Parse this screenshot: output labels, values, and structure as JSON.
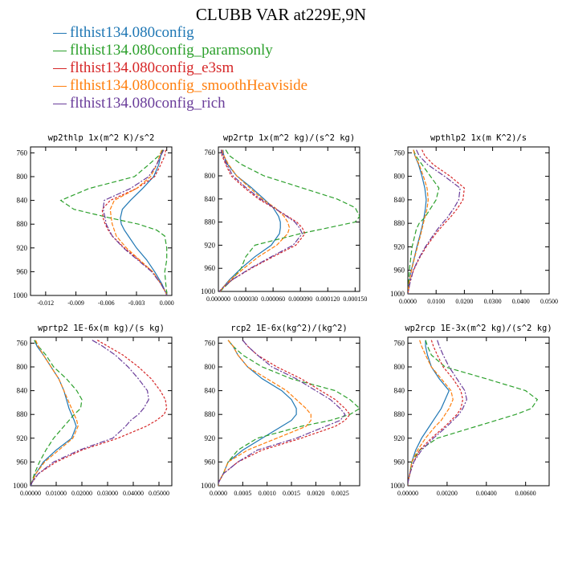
{
  "title": "CLUBB VAR at229E,9N",
  "legend": [
    {
      "label": "flthist134.080config",
      "color": "#1f77b4"
    },
    {
      "label": "flthist134.080config_paramsonly",
      "color": "#2ca02c"
    },
    {
      "label": "flthist134.080config_e3sm",
      "color": "#d62728"
    },
    {
      "label": "flthist134.080config_smoothHeaviside",
      "color": "#ff7f0e"
    },
    {
      "label": "flthist134.080config_rich",
      "color": "#6a3d9a"
    }
  ],
  "chart_data": [
    {
      "type": "line",
      "title": "wp2thlp  1x(m^2 K)/s^2",
      "xlim": [
        -0.0135,
        0.0005
      ],
      "xticks": [
        -0.012,
        -0.009,
        -0.006,
        -0.003,
        0.0
      ],
      "xticklabels": [
        "-0.012",
        "-0.009",
        "-0.006",
        "-0.003",
        "0.000"
      ],
      "ylim": [
        1000,
        750
      ],
      "yticks": [
        760,
        800,
        840,
        880,
        920,
        960,
        1000
      ],
      "yticklabels": [
        "760",
        "800",
        "840",
        "880",
        "920",
        "960",
        "1000"
      ],
      "y": [
        755,
        765,
        780,
        800,
        820,
        840,
        855,
        870,
        880,
        890,
        900,
        920,
        940,
        960,
        980,
        995,
        1000
      ],
      "series": [
        {
          "name": "flthist134.080config",
          "values": [
            -0.0004,
            -0.0006,
            -0.0008,
            -0.0013,
            -0.0024,
            -0.0036,
            -0.0044,
            -0.0046,
            -0.0045,
            -0.0042,
            -0.0038,
            -0.003,
            -0.002,
            -0.0012,
            -0.0005,
            -0.0001,
            0.0
          ]
        },
        {
          "name": "flthist134.080config_paramsonly",
          "values": [
            -0.0004,
            -0.0008,
            -0.0018,
            -0.0032,
            -0.0077,
            -0.0105,
            -0.0092,
            -0.0055,
            -0.0028,
            -0.001,
            -0.0002,
            0.0,
            0.0,
            -0.0002,
            -0.0001,
            0.0,
            0.0
          ]
        },
        {
          "name": "flthist134.080config_e3sm",
          "values": [
            -0.0001,
            -0.0002,
            -0.0006,
            -0.0012,
            -0.003,
            -0.0056,
            -0.0064,
            -0.0063,
            -0.0061,
            -0.0058,
            -0.0054,
            -0.0042,
            -0.0028,
            -0.0014,
            -0.0006,
            -0.0001,
            0.0
          ]
        },
        {
          "name": "flthist134.080config_smoothHeaviside",
          "values": [
            -0.0005,
            -0.0007,
            -0.001,
            -0.0016,
            -0.003,
            -0.0052,
            -0.0056,
            -0.0055,
            -0.0054,
            -0.0052,
            -0.005,
            -0.004,
            -0.0027,
            -0.0014,
            -0.0006,
            -0.0001,
            0.0
          ]
        },
        {
          "name": "flthist134.080config_rich",
          "values": [
            -0.0003,
            -0.0006,
            -0.001,
            -0.0018,
            -0.0036,
            -0.0062,
            -0.0063,
            -0.0061,
            -0.006,
            -0.0057,
            -0.0054,
            -0.0043,
            -0.0029,
            -0.0015,
            -0.0006,
            -0.0001,
            0.0
          ]
        }
      ]
    },
    {
      "type": "line",
      "title": "wp2rtp  1x(m^2 kg)/(s^2 kg)",
      "xlim": [
        0.0,
        0.000155
      ],
      "xticks": [
        0.0,
        3e-05,
        6e-05,
        9e-05,
        0.00012,
        0.00015
      ],
      "xticklabels": [
        "0.000000",
        "0.000030",
        "0.000060",
        "0.000090",
        "0.000120",
        "0.000150"
      ],
      "ylim": [
        1000,
        750
      ],
      "yticks": [
        760,
        800,
        840,
        880,
        920,
        960,
        1000
      ],
      "yticklabels": [
        "760",
        "800",
        "840",
        "880",
        "920",
        "960",
        "1000"
      ],
      "y": [
        755,
        765,
        780,
        800,
        820,
        840,
        855,
        870,
        880,
        890,
        900,
        920,
        940,
        960,
        980,
        995,
        1000
      ],
      "series": [
        {
          "name": "flthist134.080config",
          "values": [
            5e-06,
            6e-06,
            1e-05,
            2e-05,
            3.6e-05,
            5e-05,
            6e-05,
            6.6e-05,
            6.8e-05,
            6.8e-05,
            6.7e-05,
            5.8e-05,
            4e-05,
            2.5e-05,
            1.2e-05,
            4e-06,
            2e-06
          ]
        },
        {
          "name": "flthist134.080config_paramsonly",
          "values": [
            8e-06,
            1.2e-05,
            2.5e-05,
            5e-05,
            9e-05,
            0.00013,
            0.00015,
            0.000155,
            0.00015,
            0.00012,
            9e-05,
            4e-05,
            3e-05,
            2.5e-05,
            1.5e-05,
            5e-06,
            2e-06
          ]
        },
        {
          "name": "flthist134.080config_e3sm",
          "values": [
            3e-06,
            4e-06,
            8e-06,
            1.4e-05,
            2.8e-05,
            4.4e-05,
            6e-05,
            7.6e-05,
            8.6e-05,
            9.2e-05,
            9.5e-05,
            8.5e-05,
            6e-05,
            3.6e-05,
            1.5e-05,
            4e-06,
            1e-06
          ]
        },
        {
          "name": "flthist134.080config_smoothHeaviside",
          "values": [
            4e-06,
            6e-06,
            1.1e-05,
            2e-05,
            3.4e-05,
            4.8e-05,
            6.2e-05,
            7.2e-05,
            7.6e-05,
            7.8e-05,
            7.6e-05,
            6.4e-05,
            4.4e-05,
            2.8e-05,
            1.3e-05,
            4e-06,
            2e-06
          ]
        },
        {
          "name": "flthist134.080config_rich",
          "values": [
            3e-06,
            5e-06,
            9e-06,
            1.6e-05,
            3e-05,
            4.6e-05,
            6.1e-05,
            7.5e-05,
            8.4e-05,
            8.9e-05,
            9.2e-05,
            8.2e-05,
            5.8e-05,
            3.5e-05,
            1.5e-05,
            4e-06,
            1e-06
          ]
        }
      ]
    },
    {
      "type": "line",
      "title": "wpthlp2  1x(m K^2)/s",
      "xlim": [
        0.0,
        0.05
      ],
      "xticks": [
        0.0,
        0.01,
        0.02,
        0.03,
        0.04,
        0.05
      ],
      "xticklabels": [
        "0.0000",
        "0.0100",
        "0.0200",
        "0.0300",
        "0.0400",
        "0.0500"
      ],
      "ylim": [
        1000,
        750
      ],
      "yticks": [
        760,
        800,
        840,
        880,
        920,
        960,
        1000
      ],
      "yticklabels": [
        "760",
        "800",
        "840",
        "880",
        "920",
        "960",
        "1000"
      ],
      "y": [
        755,
        765,
        780,
        800,
        820,
        840,
        855,
        870,
        880,
        890,
        900,
        920,
        940,
        960,
        980,
        995,
        1000
      ],
      "series": [
        {
          "name": "flthist134.080config",
          "values": [
            0.002,
            0.0025,
            0.0038,
            0.005,
            0.006,
            0.0065,
            0.0062,
            0.0057,
            0.0053,
            0.0048,
            0.0043,
            0.0032,
            0.0022,
            0.0012,
            0.0005,
            0.0001,
            0.0
          ]
        },
        {
          "name": "flthist134.080config_paramsonly",
          "values": [
            0.002,
            0.0028,
            0.005,
            0.008,
            0.011,
            0.01,
            0.008,
            0.006,
            0.004,
            0.003,
            0.0025,
            0.0015,
            0.001,
            0.0005,
            0.0003,
            0.0001,
            0.0
          ]
        },
        {
          "name": "flthist134.080config_e3sm",
          "values": [
            0.005,
            0.006,
            0.009,
            0.015,
            0.02,
            0.0195,
            0.0175,
            0.015,
            0.013,
            0.0112,
            0.0095,
            0.0065,
            0.004,
            0.002,
            0.0008,
            0.0002,
            0.0
          ]
        },
        {
          "name": "flthist134.080config_smoothHeaviside",
          "values": [
            0.002,
            0.0025,
            0.004,
            0.0055,
            0.0068,
            0.0072,
            0.0068,
            0.006,
            0.0055,
            0.005,
            0.0045,
            0.0034,
            0.0023,
            0.0013,
            0.0005,
            0.0001,
            0.0
          ]
        },
        {
          "name": "flthist134.080config_rich",
          "values": [
            0.003,
            0.004,
            0.007,
            0.013,
            0.0185,
            0.018,
            0.0162,
            0.014,
            0.0122,
            0.0105,
            0.009,
            0.0062,
            0.0038,
            0.0019,
            0.0008,
            0.0002,
            0.0
          ]
        }
      ]
    },
    {
      "type": "line",
      "title": "wprtp2  1E-6x(m kg)/(s kg)",
      "xlim": [
        0.0,
        0.055
      ],
      "xticks": [
        0.0,
        0.01,
        0.02,
        0.03,
        0.04,
        0.05
      ],
      "xticklabels": [
        "0.00000",
        "0.01000",
        "0.02000",
        "0.03000",
        "0.04000",
        "0.05000"
      ],
      "ylim": [
        1000,
        750
      ],
      "yticks": [
        760,
        800,
        840,
        880,
        920,
        960,
        1000
      ],
      "yticklabels": [
        "760",
        "800",
        "840",
        "880",
        "920",
        "960",
        "1000"
      ],
      "y": [
        755,
        765,
        780,
        800,
        820,
        840,
        855,
        870,
        880,
        890,
        900,
        920,
        940,
        960,
        980,
        995,
        1000
      ],
      "series": [
        {
          "name": "flthist134.080config",
          "values": [
            0.0015,
            0.0025,
            0.005,
            0.008,
            0.011,
            0.013,
            0.014,
            0.015,
            0.016,
            0.017,
            0.0178,
            0.016,
            0.01,
            0.005,
            0.002,
            0.0005,
            0.0002
          ]
        },
        {
          "name": "flthist134.080config_paramsonly",
          "values": [
            0.0015,
            0.003,
            0.006,
            0.009,
            0.014,
            0.018,
            0.02,
            0.0195,
            0.017,
            0.015,
            0.013,
            0.009,
            0.006,
            0.0035,
            0.0015,
            0.0004,
            0.0001
          ]
        },
        {
          "name": "flthist134.080config_e3sm",
          "values": [
            0.026,
            0.03,
            0.036,
            0.042,
            0.047,
            0.0505,
            0.0525,
            0.053,
            0.052,
            0.049,
            0.045,
            0.034,
            0.02,
            0.01,
            0.003,
            0.0005,
            0.0001
          ]
        },
        {
          "name": "flthist134.080config_smoothHeaviside",
          "values": [
            0.002,
            0.003,
            0.005,
            0.008,
            0.011,
            0.013,
            0.0145,
            0.016,
            0.017,
            0.018,
            0.0185,
            0.0165,
            0.011,
            0.0055,
            0.002,
            0.0005,
            0.0001
          ]
        },
        {
          "name": "flthist134.080config_rich",
          "values": [
            0.024,
            0.028,
            0.033,
            0.038,
            0.042,
            0.0455,
            0.046,
            0.044,
            0.042,
            0.039,
            0.037,
            0.032,
            0.019,
            0.009,
            0.003,
            0.0005,
            0.0001
          ]
        }
      ]
    },
    {
      "type": "line",
      "title": "rcp2  1E-6x(kg^2)/(kg^2)",
      "xlim": [
        0.0,
        0.0029
      ],
      "xticks": [
        0.0,
        0.0005,
        0.001,
        0.0015,
        0.002,
        0.0025
      ],
      "xticklabels": [
        "0.0000",
        "0.0005",
        "0.0010",
        "0.0015",
        "0.0020",
        "0.0025"
      ],
      "ylim": [
        1000,
        750
      ],
      "yticks": [
        760,
        800,
        840,
        880,
        920,
        960,
        1000
      ],
      "yticklabels": [
        "760",
        "800",
        "840",
        "880",
        "920",
        "960",
        "1000"
      ],
      "y": [
        755,
        765,
        780,
        800,
        820,
        840,
        855,
        870,
        880,
        890,
        900,
        920,
        940,
        960,
        980,
        995,
        1000
      ],
      "series": [
        {
          "name": "flthist134.080config",
          "values": [
            0.0002,
            0.0003,
            0.0004,
            0.0006,
            0.0009,
            0.0013,
            0.0015,
            0.0016,
            0.0016,
            0.0015,
            0.0013,
            0.0009,
            0.0005,
            0.0002,
            0.0001,
            0.0,
            0.0
          ]
        },
        {
          "name": "flthist134.080config_paramsonly",
          "values": [
            0.0002,
            0.0003,
            0.0005,
            0.0009,
            0.0015,
            0.0024,
            0.0027,
            0.0029,
            0.0027,
            0.0023,
            0.0017,
            0.0008,
            0.0004,
            0.0002,
            0.0001,
            0.0,
            0.0
          ]
        },
        {
          "name": "flthist134.080config_e3sm",
          "values": [
            0.0005,
            0.0006,
            0.0008,
            0.0012,
            0.0017,
            0.0021,
            0.0024,
            0.0026,
            0.0027,
            0.0026,
            0.0024,
            0.0017,
            0.0009,
            0.0004,
            0.0001,
            0.0,
            0.0
          ]
        },
        {
          "name": "flthist134.080config_smoothHeaviside",
          "values": [
            0.0002,
            0.0003,
            0.0004,
            0.0006,
            0.001,
            0.0014,
            0.0016,
            0.0018,
            0.0019,
            0.0019,
            0.0018,
            0.0012,
            0.0006,
            0.0002,
            0.0001,
            0.0,
            0.0
          ]
        },
        {
          "name": "flthist134.080config_rich",
          "values": [
            0.0005,
            0.0006,
            0.0008,
            0.0011,
            0.0016,
            0.002,
            0.0023,
            0.0025,
            0.0026,
            0.0025,
            0.0022,
            0.0016,
            0.0008,
            0.0004,
            0.0001,
            0.0,
            0.0
          ]
        }
      ]
    },
    {
      "type": "line",
      "title": "wp2rcp  1E-3x(m^2 kg)/(s^2 kg)",
      "xlim": [
        0.0,
        0.0072
      ],
      "xticks": [
        0.0,
        0.002,
        0.004,
        0.006
      ],
      "xticklabels": [
        "0.00000",
        "0.00200",
        "0.00400",
        "0.00600"
      ],
      "ylim": [
        1000,
        750
      ],
      "yticks": [
        760,
        800,
        840,
        880,
        920,
        960,
        1000
      ],
      "yticklabels": [
        "760",
        "800",
        "840",
        "880",
        "920",
        "960",
        "1000"
      ],
      "y": [
        755,
        765,
        780,
        800,
        820,
        840,
        855,
        870,
        880,
        890,
        900,
        920,
        940,
        960,
        980,
        995,
        1000
      ],
      "series": [
        {
          "name": "flthist134.080config",
          "values": [
            0.0009,
            0.0009,
            0.001,
            0.0012,
            0.0016,
            0.0021,
            0.0019,
            0.0017,
            0.0015,
            0.0013,
            0.0011,
            0.0007,
            0.0004,
            0.0002,
            0.0001,
            0.0,
            0.0
          ]
        },
        {
          "name": "flthist134.080config_paramsonly",
          "values": [
            0.0009,
            0.001,
            0.0012,
            0.0019,
            0.004,
            0.006,
            0.0066,
            0.0063,
            0.0055,
            0.0045,
            0.0035,
            0.0015,
            0.0006,
            0.0002,
            0.0001,
            0.0,
            0.0
          ]
        },
        {
          "name": "flthist134.080config_e3sm",
          "values": [
            0.0012,
            0.0013,
            0.0015,
            0.0018,
            0.0023,
            0.0027,
            0.0028,
            0.0027,
            0.0025,
            0.0022,
            0.0019,
            0.0012,
            0.0006,
            0.0003,
            0.0001,
            0.0,
            0.0
          ]
        },
        {
          "name": "flthist134.080config_smoothHeaviside",
          "values": [
            0.0006,
            0.0007,
            0.0009,
            0.0012,
            0.0017,
            0.0022,
            0.0023,
            0.0021,
            0.0019,
            0.0017,
            0.0014,
            0.0009,
            0.0005,
            0.0002,
            0.0001,
            0.0,
            0.0
          ]
        },
        {
          "name": "flthist134.080config_rich",
          "values": [
            0.0015,
            0.0016,
            0.0018,
            0.0021,
            0.0025,
            0.0029,
            0.003,
            0.0028,
            0.0026,
            0.0023,
            0.002,
            0.0013,
            0.0007,
            0.0003,
            0.0001,
            0.0,
            0.0
          ]
        }
      ]
    }
  ]
}
